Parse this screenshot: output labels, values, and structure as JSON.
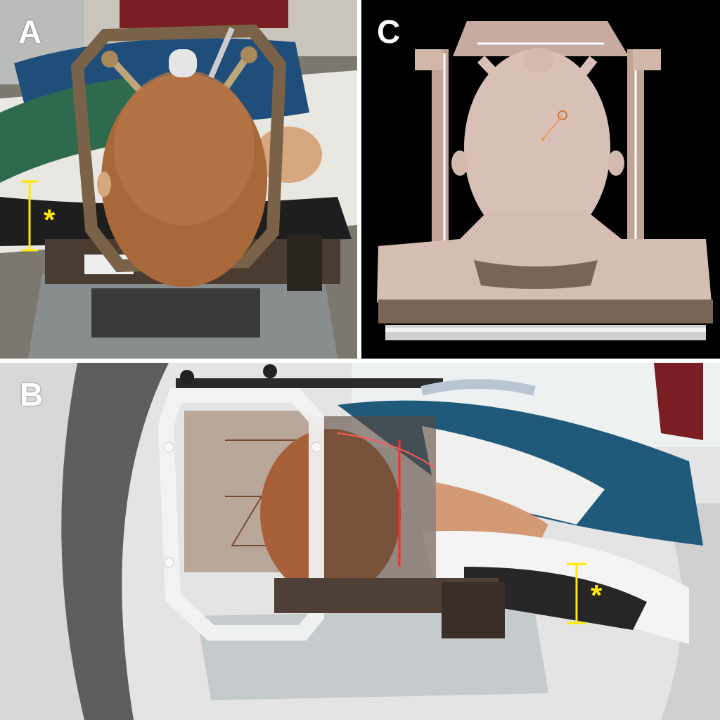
{
  "figure": {
    "panels": [
      {
        "letter": "A",
        "subject": "infant-head-in-stereotactic-frame-top-view"
      },
      {
        "letter": "C",
        "subject": "3d-ct-reconstruction-head-frame"
      },
      {
        "letter": "B",
        "subject": "head-frame-inside-ct-gantry-side-view"
      }
    ],
    "marker_symbol": "*",
    "colors": {
      "label": "#ffffff",
      "marker": "#ffea00",
      "frame_bronze": "#7a6248",
      "hair": "#a8683a",
      "reconstruction": "#d9c0b6",
      "drape_blue": "#1f5a7a",
      "laser": "#ff2a2a"
    }
  }
}
